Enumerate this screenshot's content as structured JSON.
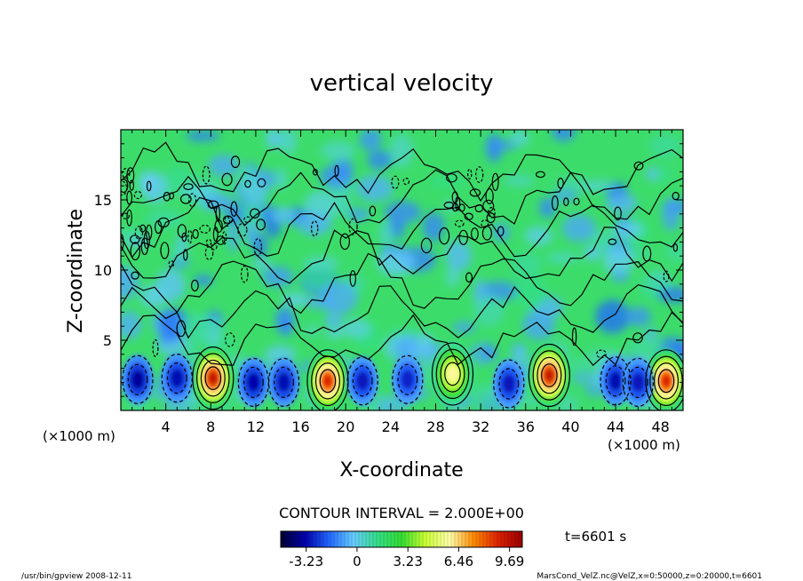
{
  "chart_data": {
    "type": "heatmap",
    "title": "vertical velocity",
    "xlabel": "X-coordinate",
    "ylabel": "Z-coordinate",
    "x_unit": "(×1000 m)",
    "x_ticks": [
      4,
      8,
      12,
      16,
      20,
      24,
      28,
      32,
      36,
      40,
      44,
      48
    ],
    "y_ticks": [
      5,
      10,
      15
    ],
    "xlim": [
      0,
      50
    ],
    "ylim": [
      0,
      20
    ],
    "contour_interval_label": "CONTOUR INTERVAL = 2.000E+00",
    "colorbar": {
      "min": -4.85,
      "max": 10.5,
      "tick_labels": [
        "-3.23",
        "0",
        "3.23",
        "6.46",
        "9.69"
      ],
      "tick_values": [
        -3.23,
        0,
        3.23,
        6.46,
        9.69
      ]
    },
    "time_label": "t=6601 s",
    "features": [
      {
        "kind": "updraft",
        "x": 8.2,
        "z": 2.3,
        "peak": 9.5
      },
      {
        "kind": "updraft",
        "x": 18.4,
        "z": 2.1,
        "peak": 9.0
      },
      {
        "kind": "updraft",
        "x": 29.5,
        "z": 2.6,
        "peak": 6.0
      },
      {
        "kind": "updraft",
        "x": 38.1,
        "z": 2.5,
        "peak": 9.5
      },
      {
        "kind": "updraft",
        "x": 48.5,
        "z": 2.1,
        "peak": 9.0
      },
      {
        "kind": "downdraft",
        "x": 1.5,
        "z": 2.2,
        "peak": -3.5
      },
      {
        "kind": "downdraft",
        "x": 5.0,
        "z": 2.3,
        "peak": -3.2
      },
      {
        "kind": "downdraft",
        "x": 11.8,
        "z": 2.0,
        "peak": -3.3
      },
      {
        "kind": "downdraft",
        "x": 14.5,
        "z": 2.0,
        "peak": -3.2
      },
      {
        "kind": "downdraft",
        "x": 21.5,
        "z": 2.1,
        "peak": -3.0
      },
      {
        "kind": "downdraft",
        "x": 25.5,
        "z": 2.2,
        "peak": -2.8
      },
      {
        "kind": "downdraft",
        "x": 34.5,
        "z": 1.9,
        "peak": -3.0
      },
      {
        "kind": "downdraft",
        "x": 44.0,
        "z": 2.1,
        "peak": -3.2
      },
      {
        "kind": "downdraft",
        "x": 46.0,
        "z": 2.0,
        "peak": -3.0
      }
    ]
  },
  "footer": {
    "left": "/usr/bin/gpview  2008-12-11",
    "right": "MarsCond_VelZ.nc@VelZ,x=0:50000,z=0:20000,t=6601"
  },
  "colors": {
    "background_field": "#33dd66",
    "ramp": [
      "#000033",
      "#0000aa",
      "#2266ff",
      "#66ccff",
      "#33dd88",
      "#33dd33",
      "#ccff33",
      "#ffffaa",
      "#ff8800",
      "#dd2200",
      "#990000"
    ]
  }
}
